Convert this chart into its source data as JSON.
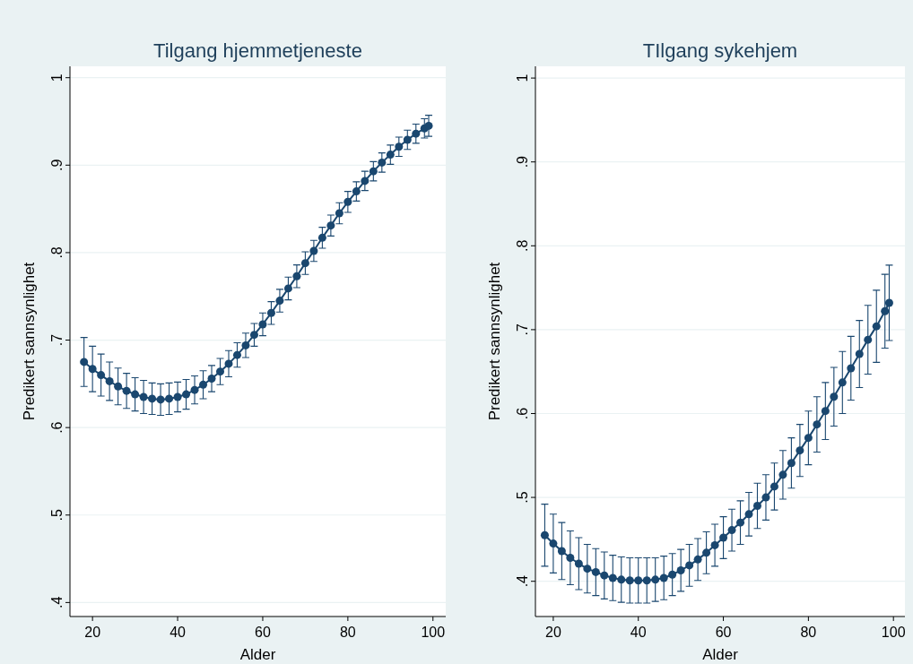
{
  "chart_data": [
    {
      "type": "line",
      "title": "Tilgang hjemmetjeneste",
      "xlabel": "Alder",
      "ylabel": "Predikert sannsynlighet",
      "marker": "circle",
      "grid": "y",
      "xlim": [
        14.7,
        103
      ],
      "ylim": [
        0.384,
        1.013
      ],
      "xticks": [
        20,
        40,
        60,
        80,
        100
      ],
      "yticks": [
        {
          "value": 0.4,
          "label": ".4"
        },
        {
          "value": 0.5,
          "label": ".5"
        },
        {
          "value": 0.6,
          "label": ".6"
        },
        {
          "value": 0.7,
          "label": ".7"
        },
        {
          "value": 0.8,
          "label": ".8"
        },
        {
          "value": 0.9,
          "label": ".9"
        },
        {
          "value": 1,
          "label": "1"
        }
      ],
      "x": [
        18,
        20,
        22,
        24,
        26,
        28,
        30,
        32,
        34,
        36,
        38,
        40,
        42,
        44,
        46,
        48,
        50,
        52,
        54,
        56,
        58,
        60,
        62,
        64,
        66,
        68,
        70,
        72,
        74,
        76,
        78,
        80,
        82,
        84,
        86,
        88,
        90,
        92,
        94,
        96,
        98,
        99
      ],
      "series": [
        {
          "color": "#1a476f",
          "values": [
            0.675,
            0.667,
            0.66,
            0.653,
            0.647,
            0.642,
            0.638,
            0.635,
            0.633,
            0.632,
            0.633,
            0.635,
            0.638,
            0.643,
            0.649,
            0.656,
            0.664,
            0.673,
            0.683,
            0.694,
            0.706,
            0.718,
            0.731,
            0.745,
            0.759,
            0.773,
            0.788,
            0.802,
            0.817,
            0.831,
            0.845,
            0.858,
            0.87,
            0.882,
            0.893,
            0.903,
            0.912,
            0.921,
            0.929,
            0.936,
            0.942,
            0.945
          ],
          "errors": [
            0.028,
            0.026,
            0.024,
            0.022,
            0.021,
            0.02,
            0.019,
            0.019,
            0.018,
            0.018,
            0.018,
            0.017,
            0.017,
            0.016,
            0.016,
            0.015,
            0.015,
            0.015,
            0.014,
            0.014,
            0.013,
            0.013,
            0.013,
            0.013,
            0.013,
            0.013,
            0.013,
            0.012,
            0.012,
            0.012,
            0.012,
            0.012,
            0.011,
            0.011,
            0.011,
            0.011,
            0.011,
            0.011,
            0.011,
            0.011,
            0.011,
            0.012
          ]
        }
      ]
    },
    {
      "type": "line",
      "title": "TIlgang sykehjem",
      "xlabel": "Alder",
      "ylabel": "Predikert sannsynlighet",
      "marker": "circle",
      "grid": "y",
      "xlim": [
        15.8,
        102.7
      ],
      "ylim": [
        0.358,
        1.014
      ],
      "xticks": [
        20,
        40,
        60,
        80,
        100
      ],
      "yticks": [
        {
          "value": 0.4,
          "label": ".4"
        },
        {
          "value": 0.5,
          "label": ".5"
        },
        {
          "value": 0.6,
          "label": ".6"
        },
        {
          "value": 0.7,
          "label": ".7"
        },
        {
          "value": 0.8,
          "label": ".8"
        },
        {
          "value": 0.9,
          "label": ".9"
        },
        {
          "value": 1,
          "label": "1"
        }
      ],
      "x": [
        18,
        20,
        22,
        24,
        26,
        28,
        30,
        32,
        34,
        36,
        38,
        40,
        42,
        44,
        46,
        48,
        50,
        52,
        54,
        56,
        58,
        60,
        62,
        64,
        66,
        68,
        70,
        72,
        74,
        76,
        78,
        80,
        82,
        84,
        86,
        88,
        90,
        92,
        94,
        96,
        98,
        99
      ],
      "series": [
        {
          "color": "#1a476f",
          "values": [
            0.455,
            0.445,
            0.436,
            0.428,
            0.421,
            0.415,
            0.411,
            0.407,
            0.404,
            0.402,
            0.401,
            0.401,
            0.401,
            0.402,
            0.404,
            0.408,
            0.413,
            0.419,
            0.426,
            0.434,
            0.443,
            0.452,
            0.461,
            0.47,
            0.48,
            0.49,
            0.5,
            0.513,
            0.527,
            0.541,
            0.556,
            0.571,
            0.587,
            0.603,
            0.62,
            0.637,
            0.654,
            0.671,
            0.688,
            0.704,
            0.722,
            0.732
          ],
          "errors": [
            0.037,
            0.035,
            0.034,
            0.032,
            0.031,
            0.029,
            0.028,
            0.028,
            0.027,
            0.027,
            0.027,
            0.027,
            0.027,
            0.026,
            0.026,
            0.025,
            0.025,
            0.025,
            0.025,
            0.025,
            0.025,
            0.025,
            0.025,
            0.026,
            0.026,
            0.027,
            0.027,
            0.028,
            0.029,
            0.03,
            0.031,
            0.032,
            0.033,
            0.034,
            0.035,
            0.037,
            0.038,
            0.04,
            0.041,
            0.043,
            0.044,
            0.045
          ]
        }
      ]
    }
  ]
}
